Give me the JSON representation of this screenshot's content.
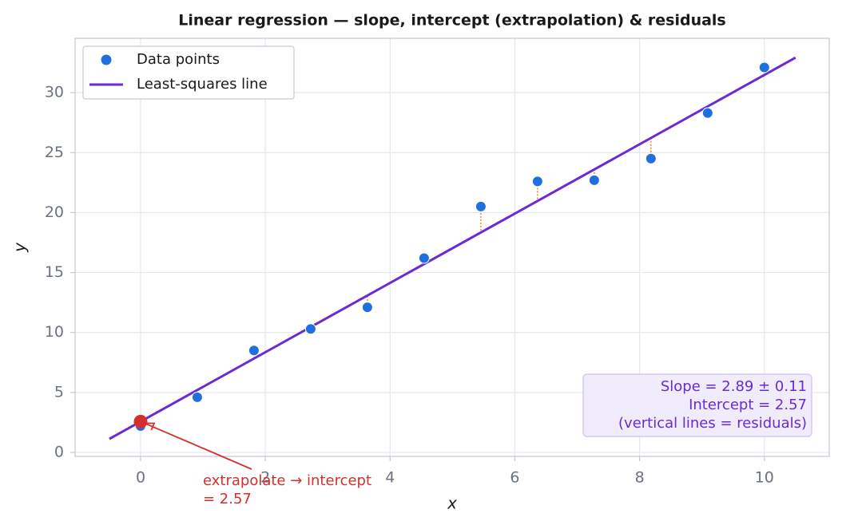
{
  "chart_data": {
    "type": "scatter",
    "title": "Linear regression — slope, intercept (extrapolation) & residuals",
    "x_label": "x",
    "y_label": "y",
    "xlim": [
      -1.05,
      11.04
    ],
    "ylim": [
      -0.33,
      34.53
    ],
    "xticks": [
      0,
      2,
      4,
      6,
      8,
      10
    ],
    "yticks": [
      0,
      5,
      10,
      15,
      20,
      25,
      30
    ],
    "grid": true,
    "legend": "upper left",
    "series": [
      {
        "name": "Data points",
        "color": "#1f6fe0",
        "kind": "points",
        "x": [
          0,
          0.909,
          1.818,
          2.727,
          3.636,
          4.545,
          5.455,
          6.364,
          7.273,
          8.182,
          9.091,
          10
        ],
        "values": [
          2.2,
          4.6,
          8.5,
          10.3,
          12.1,
          16.2,
          20.5,
          22.6,
          22.7,
          24.5,
          28.3,
          32.1
        ]
      },
      {
        "name": "Least-squares line",
        "color": "#6a2bd3",
        "kind": "line",
        "x": [
          -0.5,
          10.5
        ],
        "values": [
          1.13,
          32.92
        ]
      }
    ],
    "residual_color": "#e07b00",
    "intercept_point": {
      "x": 0,
      "y": 2.57,
      "color": "#d32f2f"
    },
    "annotation_lines": [
      "extrapolate → intercept",
      "= 2.57"
    ],
    "box_lines": [
      "Slope = 2.89 ± 0.11",
      "Intercept = 2.57",
      "(vertical lines = residuals)"
    ]
  }
}
